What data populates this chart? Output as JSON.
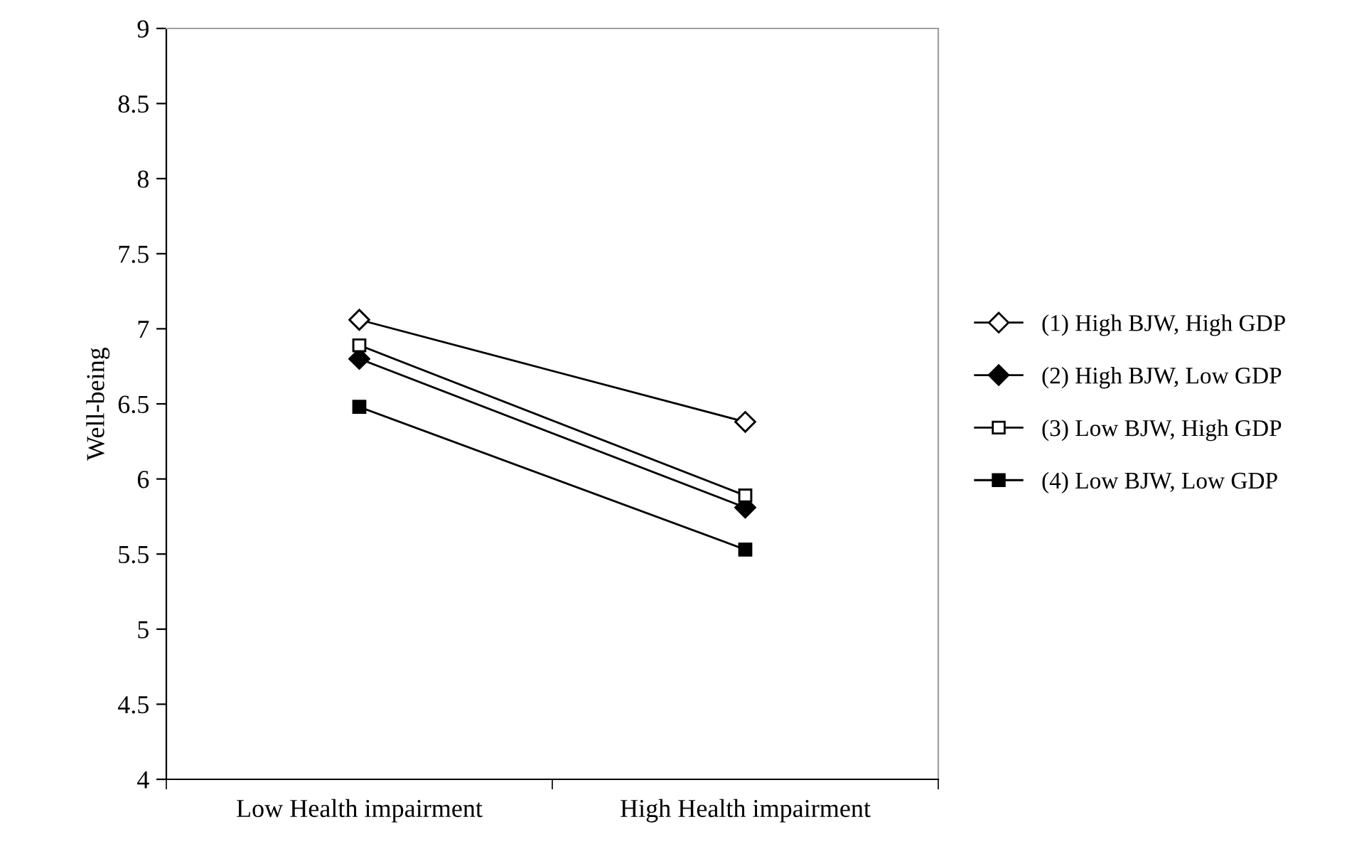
{
  "chart_data": {
    "type": "line",
    "ylabel": "Well-being",
    "categories": [
      "Low Health impairment",
      "High Health impairment"
    ],
    "ylim": [
      4,
      9
    ],
    "yticks": [
      4,
      4.5,
      5,
      5.5,
      6,
      6.5,
      7,
      7.5,
      8,
      8.5,
      9
    ],
    "grid": false,
    "legend": "right",
    "line_style": "solid",
    "series": [
      {
        "name": "(1) High BJW, High GDP",
        "color": "#000000",
        "marker": "diamond",
        "colors": [
          "#ffffff",
          "#ffffff"
        ],
        "values": [
          7.06,
          6.38
        ]
      },
      {
        "name": "(2) High BJW, Low GDP",
        "color": "#000000",
        "marker": "diamond",
        "colors": [
          "#000000",
          "#000000"
        ],
        "values": [
          6.8,
          5.81
        ]
      },
      {
        "name": "(3) Low BJW, High GDP",
        "color": "#000000",
        "marker": "square",
        "colors": [
          "#ffffff",
          "#ffffff"
        ],
        "values": [
          6.89,
          5.89
        ]
      },
      {
        "name": "(4) Low BJW, Low GDP",
        "color": "#000000",
        "marker": "square",
        "colors": [
          "#000000",
          "#000000"
        ],
        "values": [
          6.48,
          5.53
        ]
      }
    ]
  }
}
